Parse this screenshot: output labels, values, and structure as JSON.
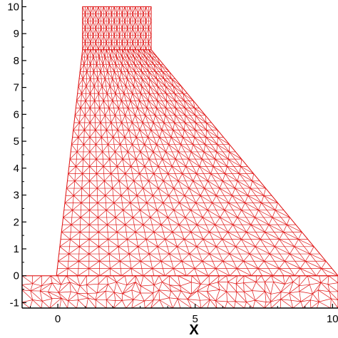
{
  "chart_data": {
    "type": "mesh",
    "xlabel": "X",
    "ylabel": "",
    "xlim": [
      -1.3,
      10.2
    ],
    "ylim": [
      -1.2,
      10.25
    ],
    "xticks": [
      0,
      5,
      10
    ],
    "yticks": [
      -1,
      0,
      1,
      2,
      3,
      4,
      5,
      6,
      7,
      8,
      9,
      10
    ],
    "mesh_color": "#e01818",
    "axis_color": "#000000",
    "grid": false,
    "regions": [
      {
        "name": "",
        "mesh": "structured-triangles",
        "outline": [
          [
            -0.05,
            0.0
          ],
          [
            0.9,
            8.4
          ],
          [
            3.4,
            8.4
          ],
          [
            10.2,
            0.0
          ]
        ]
      },
      {
        "name": "",
        "mesh": "structured-triangles",
        "outline": [
          [
            0.9,
            8.4
          ],
          [
            0.9,
            10.0
          ],
          [
            3.4,
            10.0
          ],
          [
            3.4,
            8.4
          ]
        ]
      },
      {
        "name": "",
        "mesh": "unstructured-triangles",
        "outline": [
          [
            -1.3,
            -1.2
          ],
          [
            -1.3,
            0.0
          ],
          [
            10.2,
            0.0
          ],
          [
            10.2,
            -1.2
          ]
        ]
      }
    ]
  }
}
